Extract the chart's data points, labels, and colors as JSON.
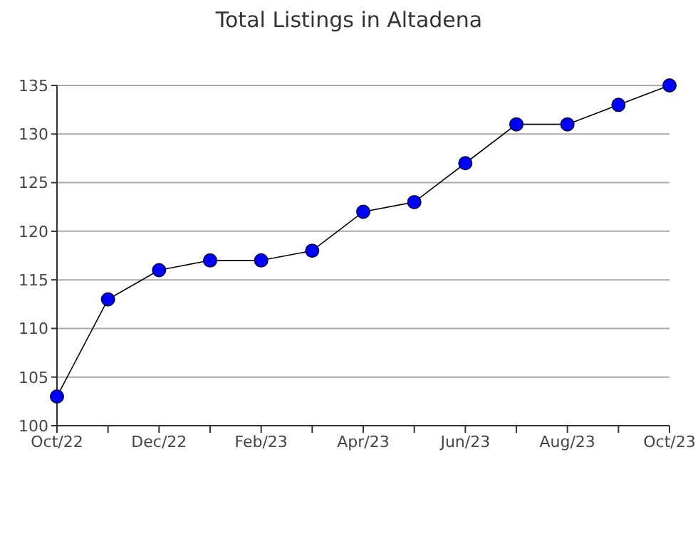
{
  "chart_data": {
    "type": "line",
    "title": "Total Listings in Altadena",
    "categories": [
      "Oct/22",
      null,
      "Dec/22",
      null,
      "Feb/23",
      null,
      "Apr/23",
      null,
      "Jun/23",
      null,
      "Aug/23",
      null,
      "Oct/23"
    ],
    "series": [
      {
        "color": "#0000ff",
        "values": [
          103,
          113,
          116,
          117,
          117,
          118,
          122,
          123,
          127,
          131,
          131,
          133,
          135
        ]
      }
    ],
    "ylim": [
      100,
      135
    ],
    "yticks": [
      100,
      105,
      110,
      115,
      120,
      125,
      130,
      135
    ],
    "grid": "y",
    "marker": "circle",
    "line_style": "solid"
  }
}
